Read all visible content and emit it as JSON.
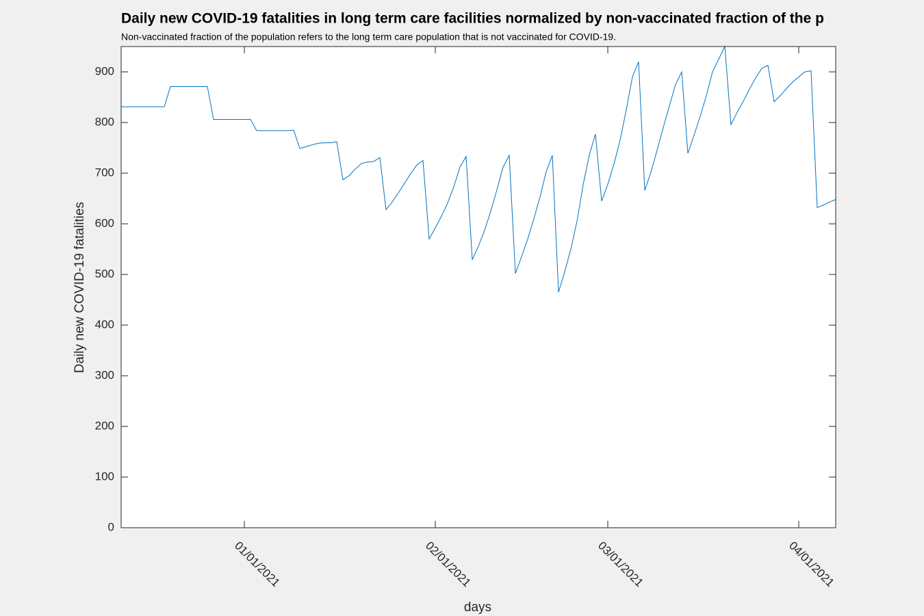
{
  "chart_data": {
    "type": "line",
    "title": "Daily new COVID-19 fatalities in long term care facilities normalized by non-vaccinated fraction of the p",
    "subtitle": "Non-vaccinated fraction of the population refers to the long term care population that is not vaccinated for COVID-19.",
    "x_label": "days",
    "y_label": "Daily new COVID-19 fatalities",
    "color": "#0072bd",
    "x": [
      "2020-12-12",
      "2020-12-13",
      "2020-12-14",
      "2020-12-15",
      "2020-12-16",
      "2020-12-17",
      "2020-12-18",
      "2020-12-19",
      "2020-12-20",
      "2020-12-21",
      "2020-12-22",
      "2020-12-23",
      "2020-12-24",
      "2020-12-25",
      "2020-12-26",
      "2020-12-27",
      "2020-12-28",
      "2020-12-29",
      "2020-12-30",
      "2020-12-31",
      "2021-01-01",
      "2021-01-02",
      "2021-01-03",
      "2021-01-04",
      "2021-01-05",
      "2021-01-06",
      "2021-01-07",
      "2021-01-08",
      "2021-01-09",
      "2021-01-10",
      "2021-01-11",
      "2021-01-12",
      "2021-01-13",
      "2021-01-14",
      "2021-01-15",
      "2021-01-16",
      "2021-01-17",
      "2021-01-18",
      "2021-01-19",
      "2021-01-20",
      "2021-01-21",
      "2021-01-22",
      "2021-01-23",
      "2021-01-24",
      "2021-01-25",
      "2021-01-26",
      "2021-01-27",
      "2021-01-28",
      "2021-01-29",
      "2021-01-30",
      "2021-01-31",
      "2021-02-01",
      "2021-02-02",
      "2021-02-03",
      "2021-02-04",
      "2021-02-05",
      "2021-02-06",
      "2021-02-07",
      "2021-02-08",
      "2021-02-09",
      "2021-02-10",
      "2021-02-11",
      "2021-02-12",
      "2021-02-13",
      "2021-02-14",
      "2021-02-15",
      "2021-02-16",
      "2021-02-17",
      "2021-02-18",
      "2021-02-19",
      "2021-02-20",
      "2021-02-21",
      "2021-02-22",
      "2021-02-23",
      "2021-02-24",
      "2021-02-25",
      "2021-02-26",
      "2021-02-27",
      "2021-02-28",
      "2021-03-01",
      "2021-03-02",
      "2021-03-03",
      "2021-03-04",
      "2021-03-05",
      "2021-03-06",
      "2021-03-07",
      "2021-03-08",
      "2021-03-09",
      "2021-03-10",
      "2021-03-11",
      "2021-03-12",
      "2021-03-13",
      "2021-03-14",
      "2021-03-15",
      "2021-03-16",
      "2021-03-17",
      "2021-03-18",
      "2021-03-19",
      "2021-03-20",
      "2021-03-21",
      "2021-03-22",
      "2021-03-23",
      "2021-03-24",
      "2021-03-25",
      "2021-03-26",
      "2021-03-27",
      "2021-03-28",
      "2021-03-29",
      "2021-03-30",
      "2021-03-31",
      "2021-04-01",
      "2021-04-02",
      "2021-04-03",
      "2021-04-04",
      "2021-04-05",
      "2021-04-06",
      "2021-04-07"
    ],
    "values": [
      831,
      831,
      831,
      831,
      831,
      831,
      831,
      831,
      871,
      871,
      871,
      871,
      871,
      871,
      871,
      806,
      806,
      806,
      806,
      806,
      806,
      806,
      784,
      784,
      784,
      784,
      784,
      784,
      785,
      749,
      752,
      756,
      759,
      760,
      760,
      762,
      687,
      695,
      708,
      719,
      722,
      723,
      731,
      628,
      643,
      661,
      680,
      699,
      716,
      725,
      570,
      592,
      615,
      641,
      673,
      712,
      733,
      529,
      556,
      587,
      625,
      667,
      712,
      735,
      502,
      535,
      570,
      610,
      653,
      703,
      735,
      465,
      505,
      550,
      605,
      677,
      736,
      777,
      645,
      678,
      718,
      765,
      825,
      890,
      920,
      666,
      702,
      745,
      790,
      833,
      875,
      900,
      739,
      775,
      812,
      853,
      900,
      925,
      950,
      796,
      820,
      842,
      866,
      888,
      907,
      913,
      841,
      853,
      867,
      880,
      890,
      900,
      902,
      632,
      637,
      643,
      648
    ],
    "xlim": [
      "2020-12-12",
      "2021-04-07"
    ],
    "xticks": [
      {
        "value": "2021-01-01",
        "label": "01/01/2021"
      },
      {
        "value": "2021-02-01",
        "label": "02/01/2021"
      },
      {
        "value": "2021-03-01",
        "label": "03/01/2021"
      },
      {
        "value": "2021-04-01",
        "label": "04/01/2021"
      }
    ],
    "ylim": [
      0,
      950
    ],
    "yticks": [
      0,
      100,
      200,
      300,
      400,
      500,
      600,
      700,
      800,
      900
    ]
  }
}
